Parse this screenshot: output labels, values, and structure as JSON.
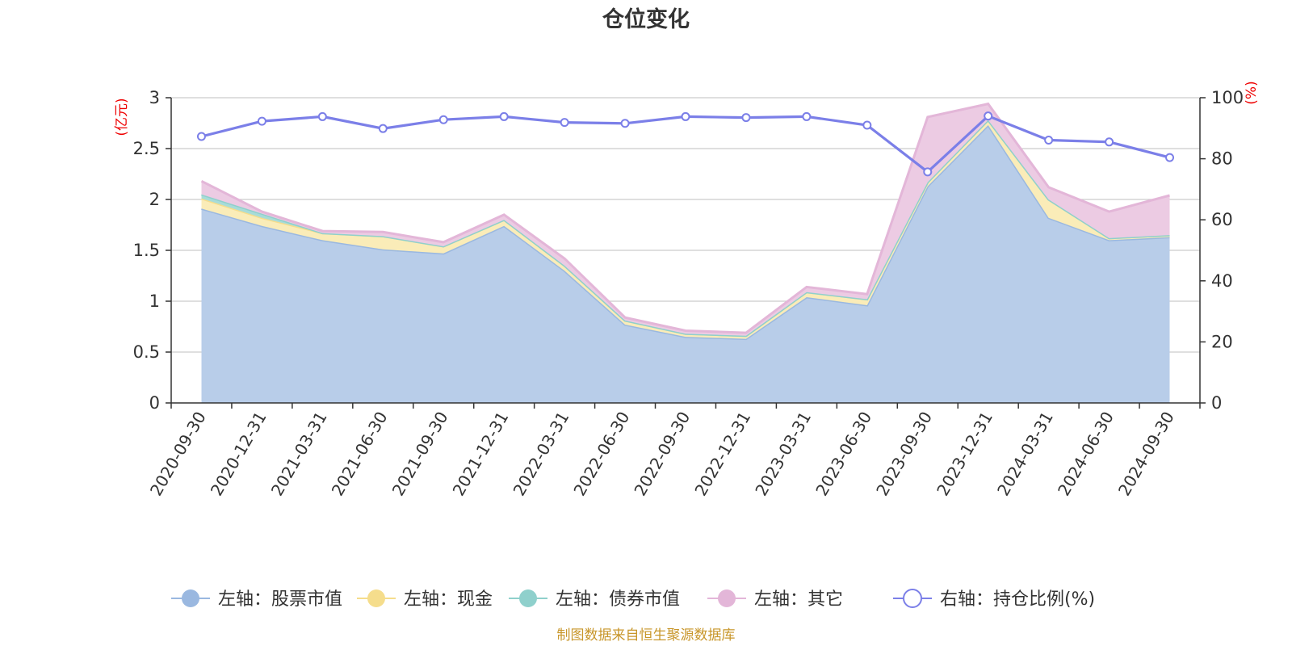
{
  "chart_data": {
    "type": "area",
    "title": "仓位变化",
    "categories": [
      "2020-09-30",
      "2020-12-31",
      "2021-03-31",
      "2021-06-30",
      "2021-09-30",
      "2021-12-31",
      "2022-03-31",
      "2022-06-30",
      "2022-09-30",
      "2022-12-31",
      "2023-03-31",
      "2023-06-30",
      "2023-09-30",
      "2023-12-31",
      "2024-03-31",
      "2024-06-30",
      "2024-09-30"
    ],
    "left_axis": {
      "unit": "(亿元)",
      "ylim": [
        0,
        3
      ],
      "ticks": [
        "0",
        "0.5",
        "1",
        "1.5",
        "2",
        "2.5",
        "3"
      ],
      "tick_values": [
        0,
        0.5,
        1,
        1.5,
        2,
        2.5,
        3
      ]
    },
    "right_axis": {
      "unit": "(%)",
      "ylim": [
        0,
        100
      ],
      "ticks": [
        "0",
        "20",
        "40",
        "60",
        "80",
        "100"
      ],
      "tick_values": [
        0,
        20,
        40,
        60,
        80,
        100
      ]
    },
    "stacked": true,
    "series": [
      {
        "name": "左轴：股票市值",
        "axis": "left",
        "color": "#9ab8e0",
        "fill": "#b8cde9",
        "values": [
          1.91,
          1.74,
          1.6,
          1.51,
          1.47,
          1.74,
          1.3,
          0.77,
          0.65,
          0.63,
          1.04,
          0.96,
          2.13,
          2.73,
          1.82,
          1.6,
          1.63
        ]
      },
      {
        "name": "左轴：现金",
        "axis": "left",
        "color": "#f5dd8c",
        "fill": "#faecb8",
        "values": [
          0.1,
          0.08,
          0.07,
          0.13,
          0.07,
          0.06,
          0.05,
          0.04,
          0.03,
          0.03,
          0.05,
          0.06,
          0.04,
          0.05,
          0.18,
          0.02,
          0.02
        ]
      },
      {
        "name": "左轴：债券市值",
        "axis": "left",
        "color": "#8fd0cc",
        "fill": "#a8dcd8",
        "values": [
          0.04,
          0.04,
          0,
          0,
          0,
          0,
          0,
          0,
          0,
          0,
          0,
          0,
          0,
          0,
          0,
          0,
          0
        ]
      },
      {
        "name": "左轴：其它",
        "axis": "left",
        "color": "#e3b6d8",
        "fill": "#eccbe3",
        "values": [
          0.13,
          0.02,
          0.02,
          0.04,
          0.04,
          0.05,
          0.07,
          0.03,
          0.03,
          0.03,
          0.05,
          0.05,
          0.64,
          0.16,
          0.12,
          0.26,
          0.39
        ]
      },
      {
        "name": "右轴：持仓比例(%)",
        "axis": "right",
        "type": "line",
        "color": "#7b7fe8",
        "values": [
          87.3,
          92.3,
          93.8,
          89.9,
          92.8,
          93.8,
          91.9,
          91.6,
          93.8,
          93.5,
          93.8,
          91.0,
          75.7,
          94.0,
          86.1,
          85.5,
          80.4
        ]
      }
    ],
    "legend_position": "bottom",
    "grid": true
  },
  "source_text": "制图数据来自恒生聚源数据库"
}
